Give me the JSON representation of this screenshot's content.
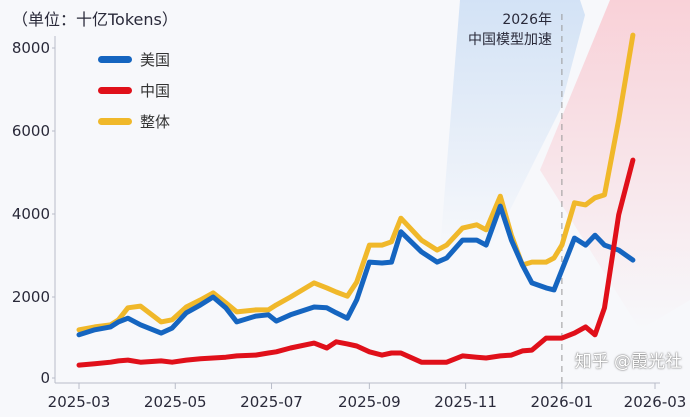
{
  "chart_data": {
    "type": "line",
    "unit_label": "（单位：十亿Tokens）",
    "annotation": [
      "2026年",
      "中国模型加速"
    ],
    "annotation_date": "2026-01-01",
    "ylim": [
      0,
      8000
    ],
    "yticks": [
      0,
      2000,
      4000,
      6000,
      8000
    ],
    "xticks": [
      "2025-03",
      "2025-05",
      "2025-07",
      "2025-09",
      "2025-11",
      "2026-01",
      "2026-03"
    ],
    "xlim": [
      "2025-03-01",
      "2026-03-01"
    ],
    "grid": false,
    "legend_placement": "top-left",
    "x": [
      "2025-03-01",
      "2025-03-11",
      "2025-03-21",
      "2025-03-26",
      "2025-04-01",
      "2025-04-09",
      "2025-04-22",
      "2025-04-29",
      "2025-05-08",
      "2025-05-17",
      "2025-05-25",
      "2025-06-02",
      "2025-06-09",
      "2025-06-21",
      "2025-06-29",
      "2025-07-04",
      "2025-07-13",
      "2025-07-28",
      "2025-08-05",
      "2025-08-11",
      "2025-08-18",
      "2025-08-24",
      "2025-09-01",
      "2025-09-09",
      "2025-09-15",
      "2025-09-21",
      "2025-10-04",
      "2025-10-14",
      "2025-10-20",
      "2025-10-30",
      "2025-11-08",
      "2025-11-14",
      "2025-11-23",
      "2025-11-30",
      "2025-12-07",
      "2025-12-13",
      "2025-12-22",
      "2025-12-27",
      "2026-01-01",
      "2026-01-09",
      "2026-01-16",
      "2026-01-22",
      "2026-01-28",
      "2026-02-06",
      "2026-02-15"
    ],
    "series": [
      {
        "name": "美国",
        "color": "#1565c0",
        "values": [
          1090,
          1210,
          1280,
          1400,
          1490,
          1330,
          1130,
          1250,
          1620,
          1810,
          2000,
          1740,
          1400,
          1540,
          1570,
          1420,
          1570,
          1760,
          1740,
          1620,
          1490,
          1930,
          2840,
          2820,
          2840,
          3570,
          3090,
          2840,
          2940,
          3370,
          3370,
          3250,
          4190,
          3370,
          2770,
          2340,
          2220,
          2170,
          2650,
          3420,
          3250,
          3490,
          3250,
          3130,
          2890
        ]
      },
      {
        "name": "中国",
        "color": "#e0101a",
        "values": [
          360,
          390,
          430,
          460,
          480,
          430,
          460,
          430,
          480,
          510,
          530,
          550,
          580,
          600,
          650,
          680,
          770,
          890,
          770,
          920,
          870,
          820,
          680,
          600,
          650,
          650,
          430,
          430,
          430,
          580,
          550,
          530,
          580,
          600,
          700,
          720,
          1010,
          1010,
          1010,
          1130,
          1280,
          1090,
          1740,
          3980,
          5300
        ]
      },
      {
        "name": "整体",
        "color": "#f0b82a",
        "values": [
          1210,
          1280,
          1330,
          1450,
          1740,
          1780,
          1400,
          1450,
          1760,
          1930,
          2100,
          1860,
          1640,
          1690,
          1690,
          1810,
          2000,
          2340,
          2220,
          2120,
          2020,
          2360,
          3250,
          3250,
          3330,
          3900,
          3370,
          3130,
          3250,
          3660,
          3740,
          3620,
          4430,
          3490,
          2770,
          2840,
          2840,
          2940,
          3250,
          4270,
          4220,
          4390,
          4460,
          6270,
          8310
        ]
      }
    ]
  },
  "watermark": "知乎 @霞光社"
}
